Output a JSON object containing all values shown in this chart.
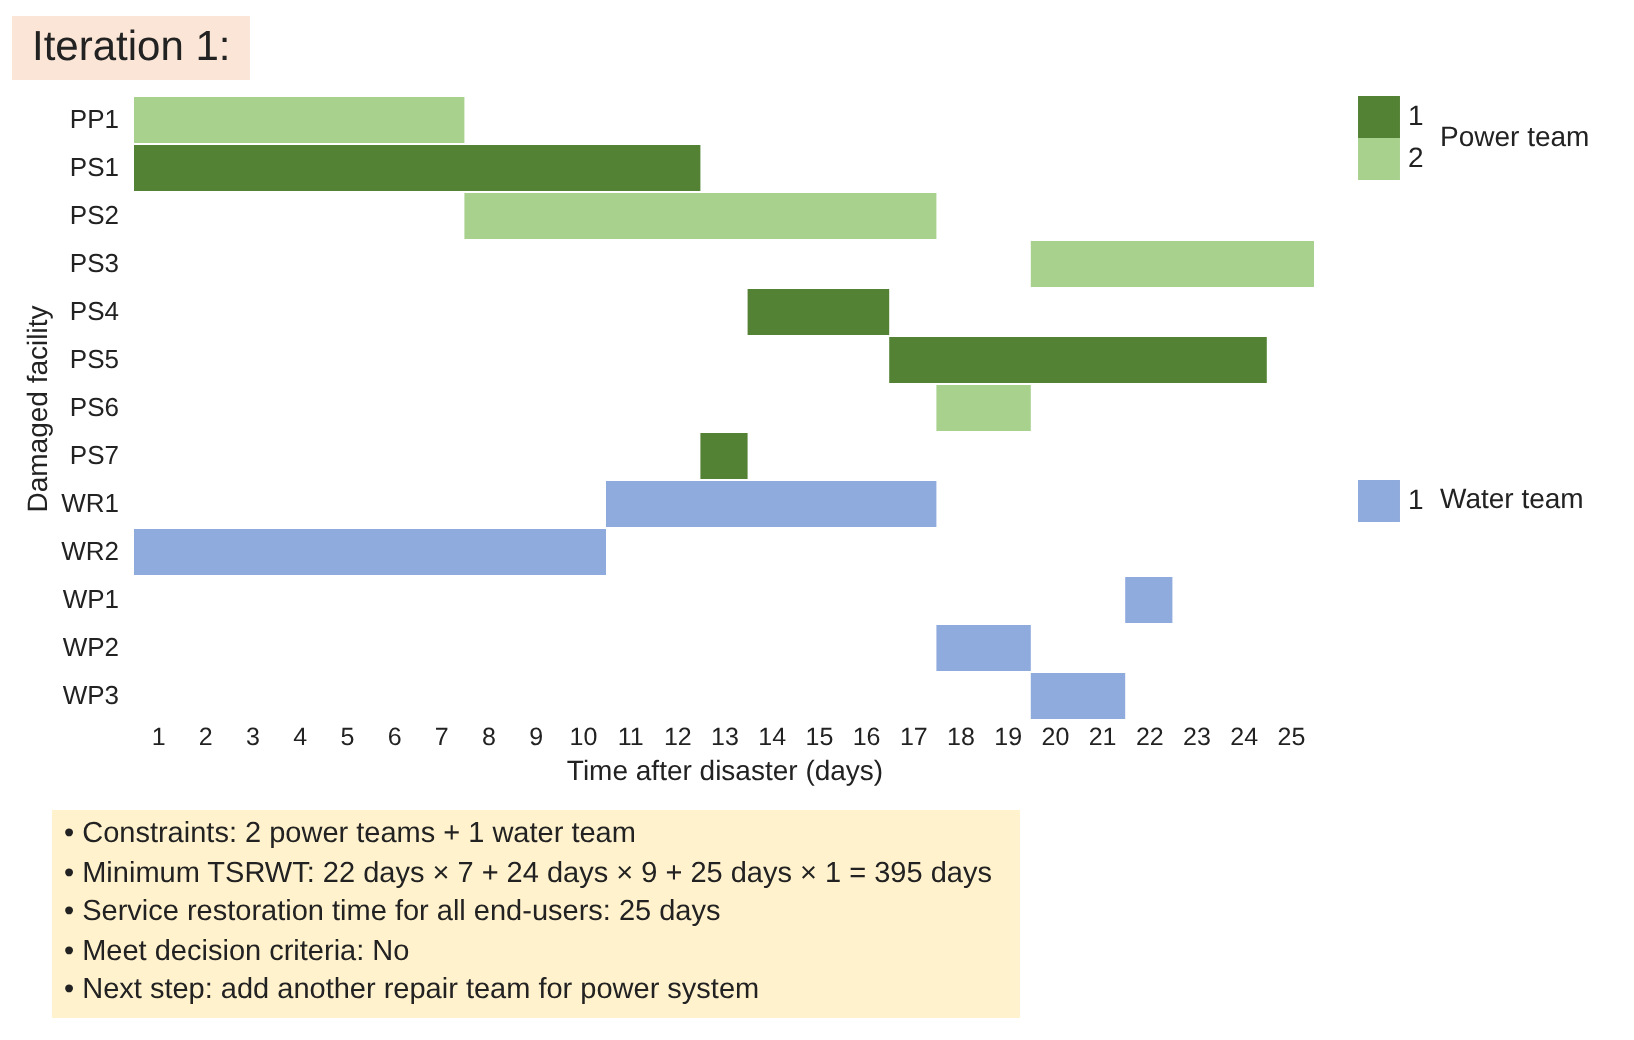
{
  "chart_data": {
    "type": "bar",
    "orientation": "horizontal",
    "title": "Iteration 1:",
    "xlabel": "Time after disaster (days)",
    "ylabel": "Damaged facility",
    "categories": [
      "PP1",
      "PS1",
      "PS2",
      "PS3",
      "PS4",
      "PS5",
      "PS6",
      "PS7",
      "WR1",
      "WR2",
      "WP1",
      "WP2",
      "WP3"
    ],
    "series": [
      {
        "name": "1",
        "color": "#548235",
        "values": [
          null,
          12,
          null,
          null,
          3,
          8,
          null,
          1,
          null,
          null,
          null,
          null,
          null
        ],
        "base": [
          null,
          0.5,
          null,
          null,
          13.5,
          16.5,
          null,
          12.5,
          null,
          null,
          null,
          null,
          null
        ]
      },
      {
        "name": "2",
        "color": "#a9d18e",
        "values": [
          7,
          null,
          10,
          6,
          null,
          null,
          2,
          null,
          null,
          null,
          null,
          null,
          null
        ],
        "base": [
          0.5,
          null,
          7.5,
          19.5,
          null,
          null,
          17.5,
          null,
          null,
          null,
          null,
          null,
          null
        ]
      },
      {
        "name": "1",
        "color": "#8faadc",
        "values": [
          null,
          null,
          null,
          null,
          null,
          null,
          null,
          null,
          7,
          10,
          1,
          2,
          2
        ],
        "base": [
          null,
          null,
          null,
          null,
          null,
          null,
          null,
          null,
          10.5,
          0.5,
          21.5,
          17.5,
          19.5
        ]
      }
    ],
    "legend_title": [
      "Power team",
      "Water team"
    ],
    "legend": "right",
    "xlim": [
      0.5,
      25.5
    ],
    "xticks": [
      1,
      2,
      3,
      4,
      5,
      6,
      7,
      8,
      9,
      10,
      11,
      12,
      13,
      14,
      15,
      16,
      17,
      18,
      19,
      20,
      21,
      22,
      23,
      24,
      25
    ],
    "annotations": [
      "• Constraints: 2 power teams + 1 water team",
      "• Minimum TSRWT: 22 days × 7 + 24 days × 9 + 25 days × 1 = 395 days",
      "• Service restoration time for all end-users: 25 days",
      "• Meet decision criteria: No",
      "• Next step: add another repair team for power system"
    ]
  }
}
